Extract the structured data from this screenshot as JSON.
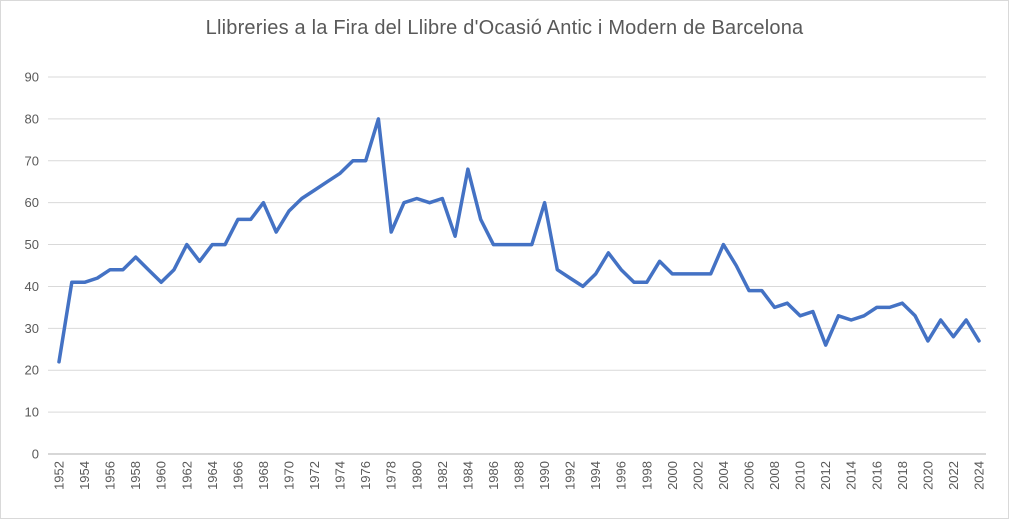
{
  "chart_data": {
    "type": "line",
    "title": "Llibreries a la Fira del Llibre d'Ocasió Antic i Modern de Barcelona",
    "series_name": "Llibreries",
    "x": [
      1952,
      1953,
      1954,
      1955,
      1956,
      1957,
      1958,
      1959,
      1960,
      1961,
      1962,
      1963,
      1964,
      1965,
      1966,
      1967,
      1968,
      1969,
      1970,
      1971,
      1972,
      1973,
      1974,
      1975,
      1976,
      1977,
      1978,
      1979,
      1980,
      1981,
      1982,
      1983,
      1984,
      1985,
      1986,
      1987,
      1988,
      1989,
      1990,
      1991,
      1992,
      1993,
      1994,
      1995,
      1996,
      1997,
      1998,
      1999,
      2000,
      2001,
      2002,
      2003,
      2004,
      2005,
      2006,
      2007,
      2008,
      2009,
      2010,
      2011,
      2012,
      2013,
      2014,
      2015,
      2016,
      2017,
      2018,
      2019,
      2020,
      2021,
      2022,
      2023,
      2024
    ],
    "values": [
      22,
      41,
      41,
      42,
      44,
      44,
      47,
      44,
      41,
      44,
      50,
      46,
      50,
      50,
      56,
      56,
      60,
      53,
      58,
      61,
      63,
      65,
      67,
      70,
      70,
      80,
      53,
      60,
      61,
      60,
      61,
      52,
      68,
      56,
      50,
      50,
      50,
      50,
      60,
      44,
      42,
      40,
      43,
      48,
      44,
      41,
      41,
      46,
      43,
      43,
      43,
      43,
      50,
      45,
      39,
      39,
      35,
      36,
      33,
      34,
      26,
      33,
      32,
      33,
      35,
      35,
      36,
      33,
      27,
      32,
      28,
      32,
      27
    ],
    "xlabel": "",
    "ylabel": "",
    "ylim": [
      0,
      90
    ],
    "y_ticks": [
      0,
      10,
      20,
      30,
      40,
      50,
      60,
      70,
      80,
      90
    ],
    "x_tick_step": 2,
    "grid": "horizontal",
    "legend": "none",
    "line_color": "#4472C4",
    "gridline_color": "#d9d9d9",
    "axis_line_color": "#bfbfbf",
    "text_color": "#595959",
    "title_color": "#595959"
  }
}
